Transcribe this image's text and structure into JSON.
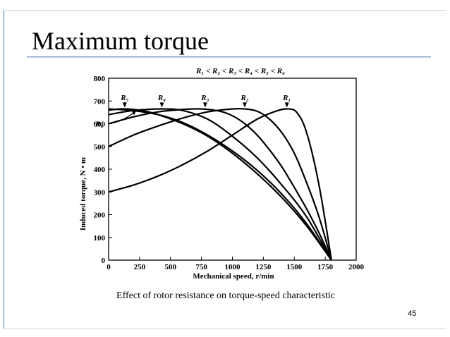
{
  "slide": {
    "title": "Maximum torque",
    "caption": "Effect of rotor resistance on torque-speed characteristic",
    "page_number": "45"
  },
  "chart_data": {
    "type": "line",
    "title": "R₁ < R₂ < R₃ < R₄ < R₅ < R₆",
    "xlabel": "Mechanical speed, r/min",
    "ylabel": "Induced torque, N • m",
    "xlim": [
      0,
      2000
    ],
    "ylim": [
      0,
      800
    ],
    "xticks": [
      0,
      250,
      500,
      750,
      1000,
      1250,
      1500,
      1750,
      2000
    ],
    "yticks": [
      0,
      100,
      200,
      300,
      400,
      500,
      600,
      700,
      800
    ],
    "grid": false,
    "sync_speed": 1800,
    "series": [
      {
        "name": "R₁",
        "x": [
          0,
          200,
          400,
          600,
          800,
          1000,
          1200,
          1350,
          1440,
          1520,
          1600,
          1700,
          1800
        ],
        "y": [
          300,
          330,
          370,
          420,
          480,
          550,
          620,
          655,
          665,
          650,
          560,
          330,
          0
        ]
      },
      {
        "name": "R₂",
        "x": [
          0,
          200,
          400,
          600,
          800,
          1000,
          1100,
          1200,
          1300,
          1400,
          1500,
          1600,
          1700,
          1800
        ],
        "y": [
          500,
          550,
          590,
          625,
          652,
          665,
          665,
          655,
          620,
          560,
          470,
          340,
          190,
          0
        ]
      },
      {
        "name": "R₃",
        "x": [
          0,
          200,
          400,
          600,
          750,
          900,
          1000,
          1100,
          1200,
          1300,
          1400,
          1500,
          1600,
          1700,
          1800
        ],
        "y": [
          600,
          630,
          652,
          663,
          665,
          655,
          635,
          600,
          550,
          485,
          410,
          320,
          225,
          120,
          0
        ]
      },
      {
        "name": "R₄",
        "x": [
          0,
          200,
          430,
          600,
          800,
          1000,
          1200,
          1400,
          1600,
          1800
        ],
        "y": [
          640,
          658,
          665,
          658,
          620,
          545,
          450,
          330,
          190,
          0
        ]
      },
      {
        "name": "R₅",
        "x": [
          0,
          100,
          200,
          300,
          400,
          600,
          800,
          1000,
          1200,
          1400,
          1600,
          1800
        ],
        "y": [
          660,
          665,
          663,
          655,
          640,
          600,
          545,
          470,
          380,
          275,
          150,
          0
        ]
      },
      {
        "name": "R₆",
        "x": [
          0,
          100,
          200,
          400,
          600,
          800,
          1000,
          1200,
          1400,
          1600,
          1800
        ],
        "y": [
          665,
          662,
          658,
          640,
          605,
          550,
          480,
          395,
          290,
          160,
          0
        ]
      }
    ],
    "annotations": [
      {
        "text": "R₅",
        "x": 130,
        "y": 665
      },
      {
        "text": "R₄",
        "x": 430,
        "y": 665
      },
      {
        "text": "R₃",
        "x": 780,
        "y": 665
      },
      {
        "text": "R₂",
        "x": 1100,
        "y": 665
      },
      {
        "text": "R₁",
        "x": 1440,
        "y": 665
      },
      {
        "text": "R₆",
        "x": 280,
        "y": 600
      }
    ]
  }
}
